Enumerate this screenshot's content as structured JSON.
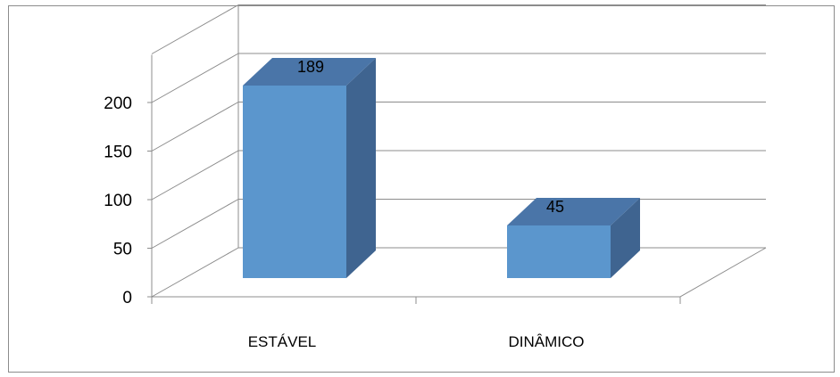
{
  "chart_data": {
    "type": "bar",
    "style": "3d-column",
    "categories": [
      "ESTÁVEL",
      "DINÂMICO"
    ],
    "values": [
      189,
      45
    ],
    "data_labels": [
      "189",
      "45"
    ],
    "yticks": [
      "0",
      "50",
      "100",
      "150",
      "200"
    ],
    "ylim": [
      0,
      250
    ],
    "grid": true,
    "legend": "none",
    "colors": {
      "front": "#5b96cd",
      "top": "#4a75a8",
      "side": "#3f6490",
      "grid": "#8c8c8c"
    }
  }
}
